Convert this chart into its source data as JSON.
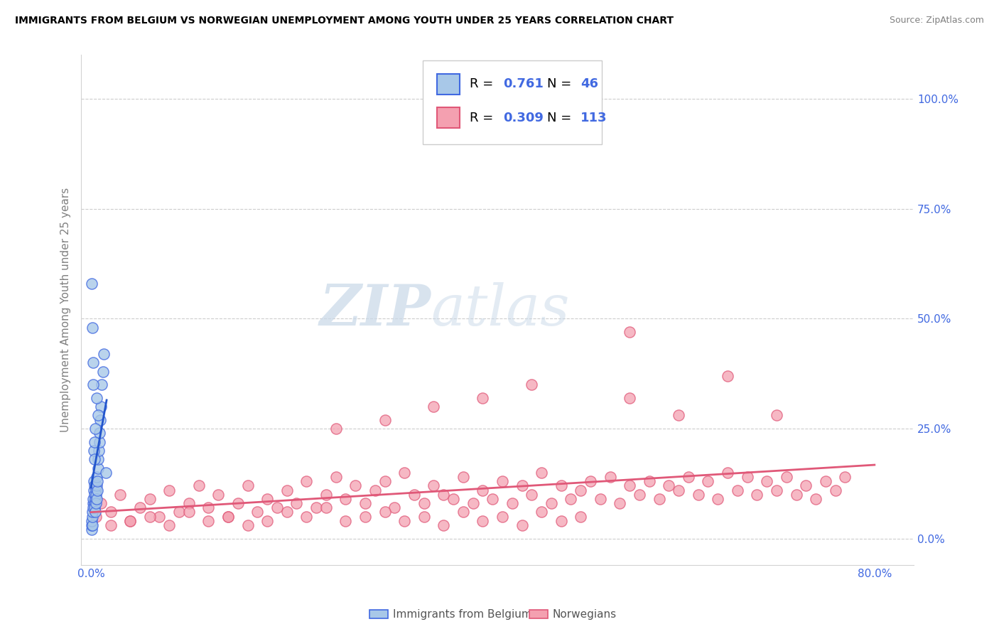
{
  "title": "IMMIGRANTS FROM BELGIUM VS NORWEGIAN UNEMPLOYMENT AMONG YOUTH UNDER 25 YEARS CORRELATION CHART",
  "source": "Source: ZipAtlas.com",
  "ylabel": "Unemployment Among Youth under 25 years",
  "ytick_vals": [
    0,
    25,
    50,
    75,
    100
  ],
  "ytick_labels": [
    "0.0%",
    "25.0%",
    "50.0%",
    "75.0%",
    "100.0%"
  ],
  "xtick_vals": [
    0,
    80
  ],
  "xtick_labels": [
    "0.0%",
    "80.0%"
  ],
  "xlim": [
    -1,
    84
  ],
  "ylim": [
    -6,
    110
  ],
  "r1": "0.761",
  "n1": "46",
  "r2": "0.309",
  "n2": "113",
  "watermark_zip": "ZIP",
  "watermark_atlas": "atlas",
  "blue_face": "#A8C8E8",
  "blue_edge": "#4169E1",
  "pink_face": "#F4A0B0",
  "pink_edge": "#E05878",
  "blue_trend_color": "#2255CC",
  "pink_trend_color": "#E05878",
  "legend_label1": "Immigrants from Belgium",
  "legend_label2": "Norwegians",
  "blue_scatter_x": [
    0.05,
    0.08,
    0.1,
    0.12,
    0.15,
    0.18,
    0.2,
    0.22,
    0.25,
    0.28,
    0.3,
    0.33,
    0.35,
    0.38,
    0.4,
    0.42,
    0.45,
    0.48,
    0.5,
    0.52,
    0.55,
    0.58,
    0.6,
    0.63,
    0.65,
    0.7,
    0.75,
    0.8,
    0.85,
    0.9,
    0.95,
    1.0,
    1.1,
    1.2,
    1.3,
    1.5,
    0.1,
    0.15,
    0.2,
    0.25,
    0.3,
    0.35,
    0.4,
    0.45,
    0.6,
    0.7
  ],
  "blue_scatter_y": [
    2,
    3,
    4,
    3,
    5,
    6,
    8,
    7,
    9,
    11,
    13,
    10,
    8,
    12,
    7,
    6,
    9,
    11,
    10,
    8,
    12,
    9,
    14,
    11,
    13,
    16,
    18,
    20,
    22,
    24,
    27,
    30,
    35,
    38,
    42,
    15,
    58,
    48,
    40,
    35,
    20,
    18,
    22,
    25,
    32,
    28
  ],
  "pink_scatter_x": [
    0.5,
    1.0,
    2.0,
    3.0,
    4.0,
    5.0,
    6.0,
    7.0,
    8.0,
    9.0,
    10.0,
    11.0,
    12.0,
    13.0,
    14.0,
    15.0,
    16.0,
    17.0,
    18.0,
    19.0,
    20.0,
    21.0,
    22.0,
    23.0,
    24.0,
    25.0,
    26.0,
    27.0,
    28.0,
    29.0,
    30.0,
    31.0,
    32.0,
    33.0,
    34.0,
    35.0,
    36.0,
    37.0,
    38.0,
    39.0,
    40.0,
    41.0,
    42.0,
    43.0,
    44.0,
    45.0,
    46.0,
    47.0,
    48.0,
    49.0,
    50.0,
    51.0,
    52.0,
    53.0,
    54.0,
    55.0,
    56.0,
    57.0,
    58.0,
    59.0,
    60.0,
    61.0,
    62.0,
    63.0,
    64.0,
    65.0,
    66.0,
    67.0,
    68.0,
    69.0,
    70.0,
    71.0,
    72.0,
    73.0,
    74.0,
    75.0,
    76.0,
    77.0,
    2.0,
    4.0,
    6.0,
    8.0,
    10.0,
    12.0,
    14.0,
    16.0,
    18.0,
    20.0,
    22.0,
    24.0,
    26.0,
    28.0,
    30.0,
    32.0,
    34.0,
    36.0,
    38.0,
    40.0,
    42.0,
    44.0,
    46.0,
    48.0,
    50.0,
    55.0,
    60.0,
    65.0,
    70.0,
    35.0,
    45.0,
    55.0,
    25.0,
    30.0,
    40.0
  ],
  "pink_scatter_y": [
    5,
    8,
    6,
    10,
    4,
    7,
    9,
    5,
    11,
    6,
    8,
    12,
    7,
    10,
    5,
    8,
    12,
    6,
    9,
    7,
    11,
    8,
    13,
    7,
    10,
    14,
    9,
    12,
    8,
    11,
    13,
    7,
    15,
    10,
    8,
    12,
    10,
    9,
    14,
    8,
    11,
    9,
    13,
    8,
    12,
    10,
    15,
    8,
    12,
    9,
    11,
    13,
    9,
    14,
    8,
    12,
    10,
    13,
    9,
    12,
    11,
    14,
    10,
    13,
    9,
    15,
    11,
    14,
    10,
    13,
    11,
    14,
    10,
    12,
    9,
    13,
    11,
    14,
    3,
    4,
    5,
    3,
    6,
    4,
    5,
    3,
    4,
    6,
    5,
    7,
    4,
    5,
    6,
    4,
    5,
    3,
    6,
    4,
    5,
    3,
    6,
    4,
    5,
    47,
    28,
    37,
    28,
    30,
    35,
    32,
    25,
    27,
    32
  ]
}
